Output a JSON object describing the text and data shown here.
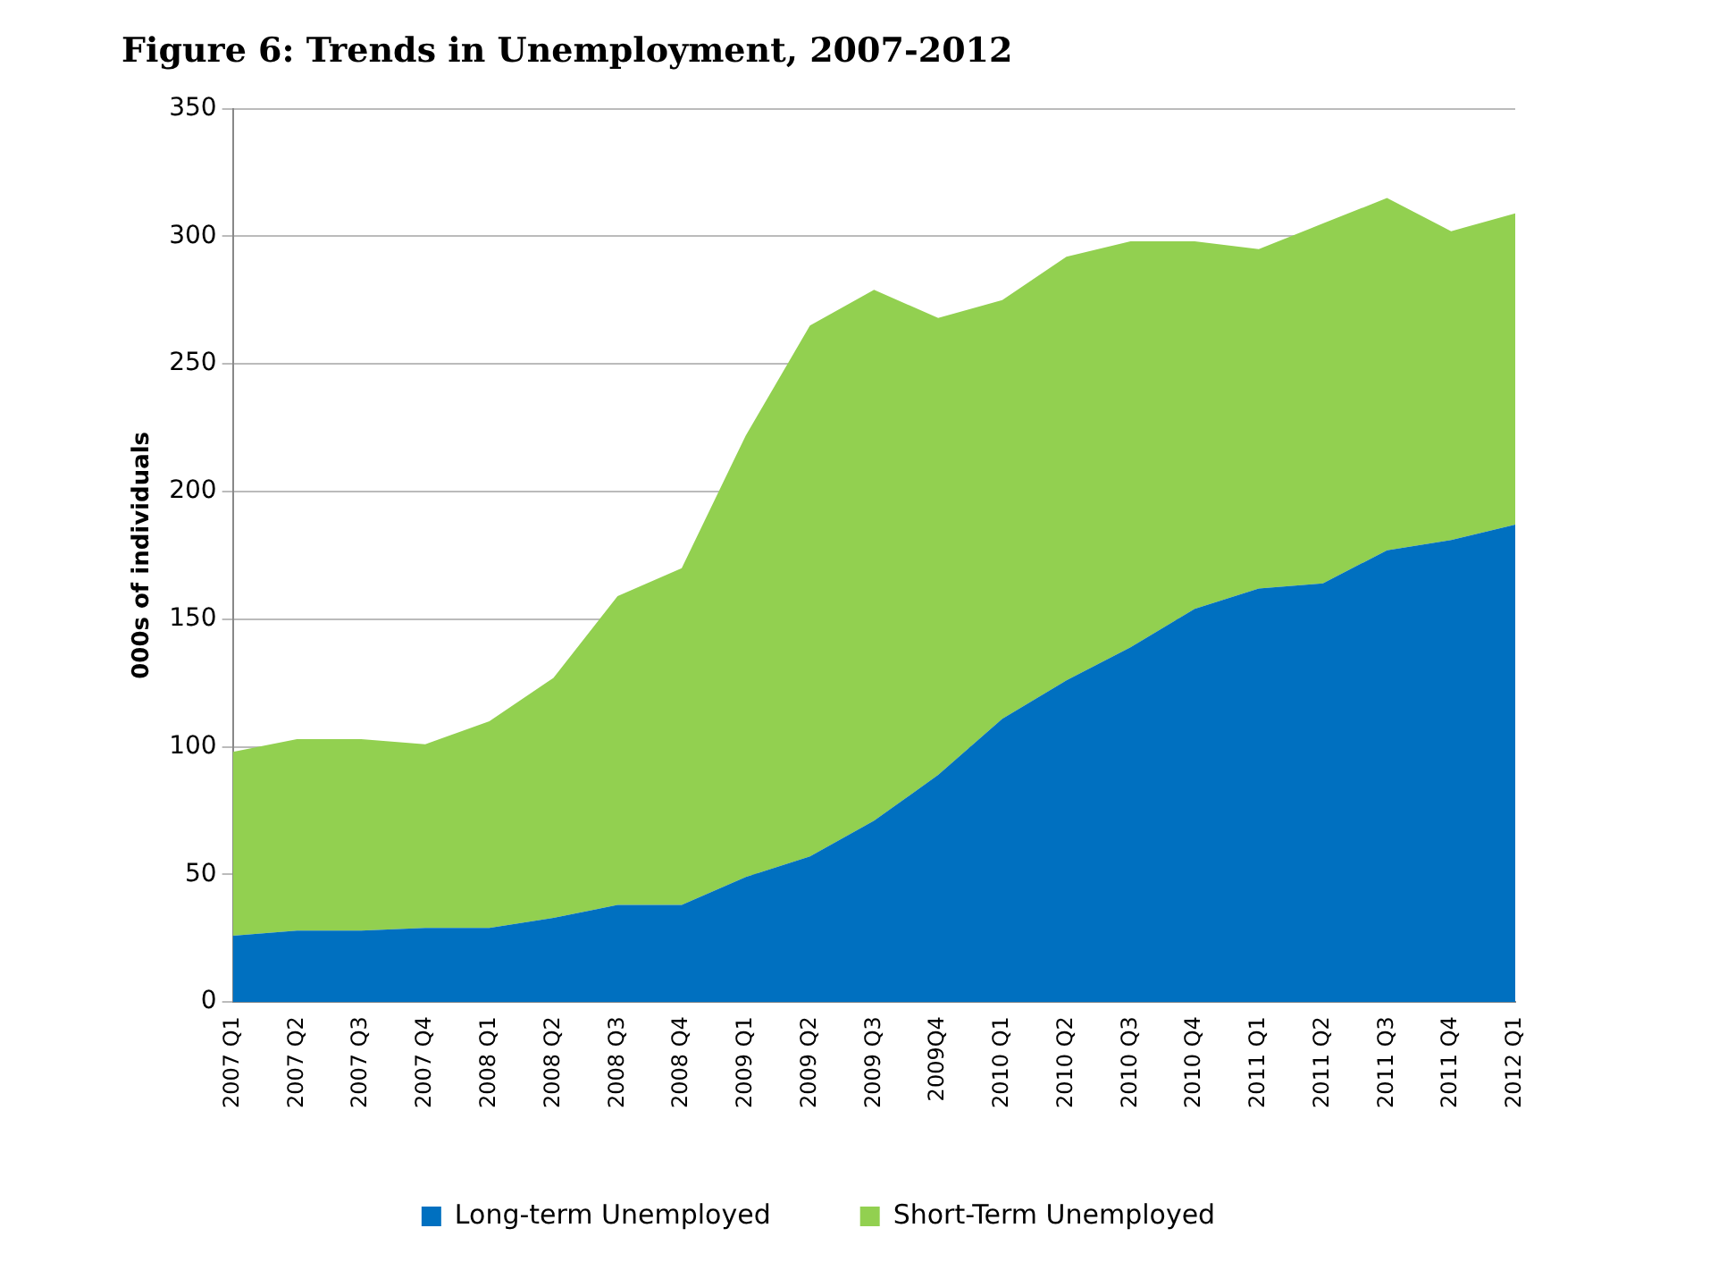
{
  "chart_data": {
    "type": "area",
    "title": "Figure 6: Trends in Unemployment, 2007-2012",
    "ylabel": "000s of individuals",
    "categories": [
      "2007 Q1",
      "2007 Q2",
      "2007 Q3",
      "2007 Q4",
      "2008 Q1",
      "2008 Q2",
      "2008 Q3",
      "2008 Q4",
      "2009 Q1",
      "2009 Q2",
      "2009 Q3",
      "2009Q4",
      "2010 Q1",
      "2010 Q2",
      "2010 Q3",
      "2010 Q4",
      "2011 Q1",
      "2011 Q2",
      "2011 Q3",
      "2011 Q4",
      "2012 Q1"
    ],
    "stacked": true,
    "series": [
      {
        "name": "Long-term Unemployed",
        "color": "#0070c0",
        "values": [
          26,
          28,
          28,
          29,
          29,
          33,
          38,
          38,
          49,
          57,
          71,
          89,
          111,
          126,
          139,
          154,
          162,
          164,
          177,
          181,
          187
        ]
      },
      {
        "name": "Short-Term Unemployed",
        "color": "#92d050",
        "values": [
          72,
          75,
          75,
          72,
          81,
          94,
          121,
          132,
          173,
          208,
          208,
          179,
          164,
          166,
          159,
          144,
          133,
          141,
          138,
          121,
          122
        ]
      }
    ],
    "ylim": [
      0,
      350
    ],
    "yticks": [
      0,
      50,
      100,
      150,
      200,
      250,
      300,
      350
    ],
    "grid": "y",
    "legend": "bottom"
  }
}
